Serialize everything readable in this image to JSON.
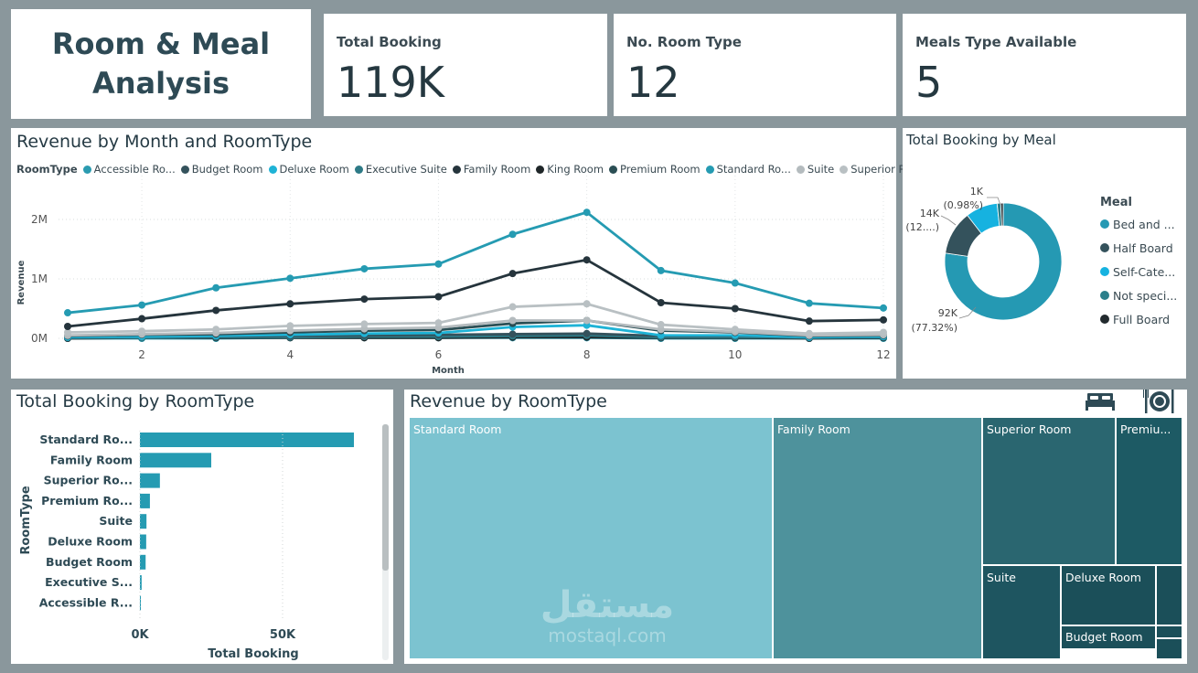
{
  "header": {
    "title_line1": "Room & Meal",
    "title_line2": "Analysis"
  },
  "cards": [
    {
      "label": "Total Booking",
      "value": "119K"
    },
    {
      "label": "No. Room Type",
      "value": "12"
    },
    {
      "label": "Meals Type Available",
      "value": "5"
    }
  ],
  "line_chart": {
    "title": "Revenue by Month and RoomType",
    "legend_title": "RoomType",
    "legend": [
      {
        "label": "Accessible Ro...",
        "color": "#2b9bb0"
      },
      {
        "label": "Budget Room",
        "color": "#34525c"
      },
      {
        "label": "Deluxe Room",
        "color": "#1eb3d6"
      },
      {
        "label": "Executive Suite",
        "color": "#2d7a86"
      },
      {
        "label": "Family Room",
        "color": "#25343c"
      },
      {
        "label": "King Room",
        "color": "#1f2628"
      },
      {
        "label": "Premium Room",
        "color": "#2a4e54"
      },
      {
        "label": "Standard Ro...",
        "color": "#259bb2"
      },
      {
        "label": "Suite",
        "color": "#b4bbbe"
      },
      {
        "label": "Superior Ro...",
        "color": "#b9c0c3"
      }
    ]
  },
  "donut": {
    "title": "Total Booking by Meal",
    "legend_title": "Meal",
    "legend": [
      {
        "label": "Bed and ...",
        "color": "#2599b3"
      },
      {
        "label": "Half Board",
        "color": "#34525c"
      },
      {
        "label": "Self-Cate...",
        "color": "#16b2e0"
      },
      {
        "label": "Not speci...",
        "color": "#2b7f8b"
      },
      {
        "label": "Full Board",
        "color": "#222a2e"
      }
    ],
    "labels": {
      "big_value": "92K",
      "big_pct": "(77.32%)",
      "mid_value": "14K",
      "mid_pct": "(12....)",
      "small_value": "1K",
      "small_pct": "(0.98%)"
    }
  },
  "bar_chart": {
    "title": "Total Booking by RoomType"
  },
  "treemap": {
    "title": "Revenue by RoomType",
    "icons": {
      "bed": "bed-icon",
      "meal": "plate-cutlery-icon"
    },
    "watermark": {
      "arabic": "مستقل",
      "latin": "mostaql.com"
    },
    "cells": [
      {
        "label": "Standard Room",
        "color": "#7cc3d0"
      },
      {
        "label": "Family Room",
        "color": "#4e929c"
      },
      {
        "label": "Superior Room",
        "color": "#2a6670"
      },
      {
        "label": "Premiu...",
        "color": "#1d5a64"
      },
      {
        "label": "Suite",
        "color": "#1e5560"
      },
      {
        "label": "Deluxe Room",
        "color": "#1b4f59"
      },
      {
        "label": "Budget Room",
        "color": "#1b4f59"
      },
      {
        "label": "",
        "color": "#1b4f59"
      },
      {
        "label": "",
        "color": "#1b4f59"
      },
      {
        "label": "",
        "color": "#1b4f59"
      }
    ]
  },
  "chart_data": [
    {
      "type": "line",
      "title": "Revenue by Month and RoomType",
      "xlabel": "Month",
      "ylabel": "Revenue",
      "x": [
        1,
        2,
        3,
        4,
        5,
        6,
        7,
        8,
        9,
        10,
        11,
        12
      ],
      "x_ticks": [
        "2",
        "4",
        "6",
        "8",
        "10",
        "12"
      ],
      "y_ticks": [
        "0M",
        "1M",
        "2M"
      ],
      "ylim": [
        0,
        2.3
      ],
      "series": [
        {
          "name": "Standard Room",
          "color": "#259bb2",
          "values": [
            0.43,
            0.56,
            0.85,
            1.01,
            1.17,
            1.25,
            1.75,
            2.12,
            1.14,
            0.93,
            0.59,
            0.51
          ]
        },
        {
          "name": "Family Room",
          "color": "#25343c",
          "values": [
            0.2,
            0.33,
            0.47,
            0.58,
            0.66,
            0.7,
            1.09,
            1.32,
            0.6,
            0.5,
            0.29,
            0.31
          ]
        },
        {
          "name": "Superior Room",
          "color": "#b9c0c3",
          "values": [
            0.1,
            0.12,
            0.15,
            0.21,
            0.24,
            0.26,
            0.53,
            0.58,
            0.23,
            0.15,
            0.08,
            0.1
          ]
        },
        {
          "name": "Suite",
          "color": "#b4bbbe",
          "values": [
            0.05,
            0.07,
            0.09,
            0.13,
            0.16,
            0.18,
            0.3,
            0.3,
            0.15,
            0.11,
            0.05,
            0.06
          ]
        },
        {
          "name": "Premium Room",
          "color": "#2a4e54",
          "values": [
            0.04,
            0.06,
            0.07,
            0.1,
            0.13,
            0.14,
            0.25,
            0.3,
            0.13,
            0.1,
            0.04,
            0.05
          ]
        },
        {
          "name": "Deluxe Room",
          "color": "#1eb3d6",
          "values": [
            0.02,
            0.03,
            0.04,
            0.06,
            0.08,
            0.09,
            0.19,
            0.22,
            0.05,
            0.05,
            0.02,
            0.03
          ]
        },
        {
          "name": "Budget Room",
          "color": "#34525c",
          "values": [
            0.02,
            0.03,
            0.03,
            0.04,
            0.05,
            0.06,
            0.07,
            0.08,
            0.04,
            0.04,
            0.02,
            0.03
          ]
        },
        {
          "name": "Executive Suite",
          "color": "#2d7a86",
          "values": [
            0.01,
            0.01,
            0.02,
            0.02,
            0.03,
            0.03,
            0.04,
            0.05,
            0.02,
            0.02,
            0.01,
            0.02
          ]
        },
        {
          "name": "King Room",
          "color": "#1f2628",
          "values": [
            0.0,
            0.01,
            0.01,
            0.01,
            0.01,
            0.01,
            0.02,
            0.02,
            0.01,
            0.01,
            0.0,
            0.01
          ]
        },
        {
          "name": "Accessible Room",
          "color": "#2b9bb0",
          "values": [
            0.0,
            0.0,
            0.0,
            0.01,
            0.01,
            0.01,
            0.01,
            0.01,
            0.0,
            0.0,
            0.0,
            0.0
          ]
        }
      ]
    },
    {
      "type": "pie",
      "title": "Total Booking by Meal",
      "labels": [
        "Bed and ...",
        "Half Board",
        "Self-Cate...",
        "Not speci...",
        "Full Board"
      ],
      "values": [
        92,
        14.5,
        10.5,
        1.2,
        0.8
      ],
      "percent": [
        77.32,
        12.2,
        8.8,
        0.98,
        0.7
      ],
      "colors": [
        "#2599b3",
        "#34525c",
        "#16b2e0",
        "#2b7f8b",
        "#222a2e"
      ]
    },
    {
      "type": "bar",
      "orientation": "horizontal",
      "title": "Total Booking by RoomType",
      "xlabel": "Total Booking",
      "ylabel": "RoomType",
      "categories": [
        "Standard Ro...",
        "Family Room",
        "Superior Ro...",
        "Premium Ro...",
        "Suite",
        "Deluxe Room",
        "Budget Room",
        "Executive S...",
        "Accessible R..."
      ],
      "values": [
        75000,
        25000,
        7000,
        3500,
        2300,
        2200,
        2000,
        600,
        250
      ],
      "x_ticks": [
        "0K",
        "50K"
      ],
      "xlim": [
        0,
        90000
      ],
      "color": "#259bb2"
    }
  ]
}
